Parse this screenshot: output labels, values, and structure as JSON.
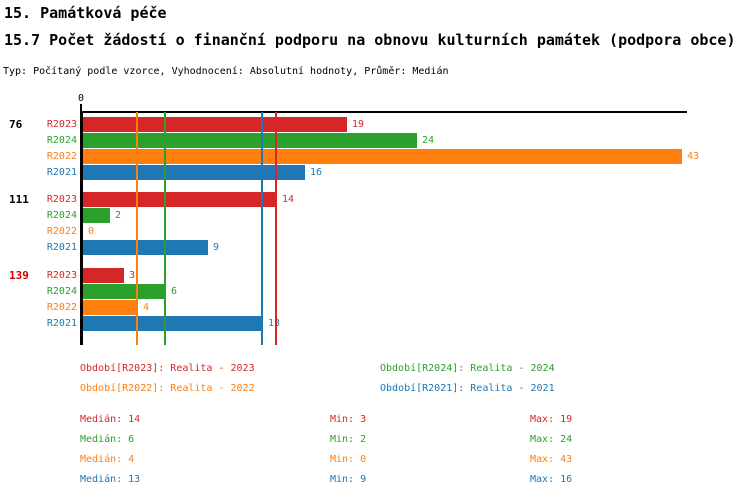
{
  "header": {
    "section_title": "15. Památková péče",
    "indicator_title": "15.7 Počet žádostí o finanční podporu na obnovu kulturních památek (podpora obce)",
    "meta": "Typ: Počítaný podle vzorce, Vyhodnocení: Absolutní hodnoty, Průměr: Medián"
  },
  "chart_data": {
    "type": "bar",
    "orientation": "horizontal",
    "xlim": [
      0,
      43
    ],
    "x_origin_label": "0",
    "grid": "median-lines-only",
    "series_order": [
      "R2023",
      "R2024",
      "R2022",
      "R2021"
    ],
    "series_colors": {
      "R2023": "#d62728",
      "R2024": "#2ca02c",
      "R2022": "#ff7f0e",
      "R2021": "#1f77b4"
    },
    "groups": [
      {
        "label": "76",
        "label_color": "#000000",
        "values": [
          19,
          24,
          43,
          16
        ]
      },
      {
        "label": "111",
        "label_color": "#000000",
        "values": [
          14,
          2,
          0,
          9
        ]
      },
      {
        "label": "139",
        "label_color": "#cc0000",
        "values": [
          3,
          6,
          4,
          13
        ]
      }
    ],
    "median_lines": [
      14,
      6,
      4,
      13
    ]
  },
  "legend": {
    "items": [
      {
        "series": "R2023",
        "label": "Období[R2023]: Realita - 2023",
        "color": "#d62728"
      },
      {
        "series": "R2024",
        "label": "Období[R2024]: Realita - 2024",
        "color": "#2ca02c"
      },
      {
        "series": "R2022",
        "label": "Období[R2022]: Realita - 2022",
        "color": "#ff7f0e"
      },
      {
        "series": "R2021",
        "label": "Období[R2021]: Realita - 2021",
        "color": "#1f77b4"
      }
    ]
  },
  "stats": {
    "labels": {
      "median": "Medián",
      "min": "Min",
      "max": "Max"
    },
    "rows": [
      {
        "series": "R2023",
        "color": "#d62728",
        "median": 14,
        "min": 3,
        "max": 19
      },
      {
        "series": "R2024",
        "color": "#2ca02c",
        "median": 6,
        "min": 2,
        "max": 24
      },
      {
        "series": "R2022",
        "color": "#ff7f0e",
        "median": 4,
        "min": 0,
        "max": 43
      },
      {
        "series": "R2021",
        "color": "#1f77b4",
        "median": 13,
        "min": 9,
        "max": 16
      }
    ]
  }
}
